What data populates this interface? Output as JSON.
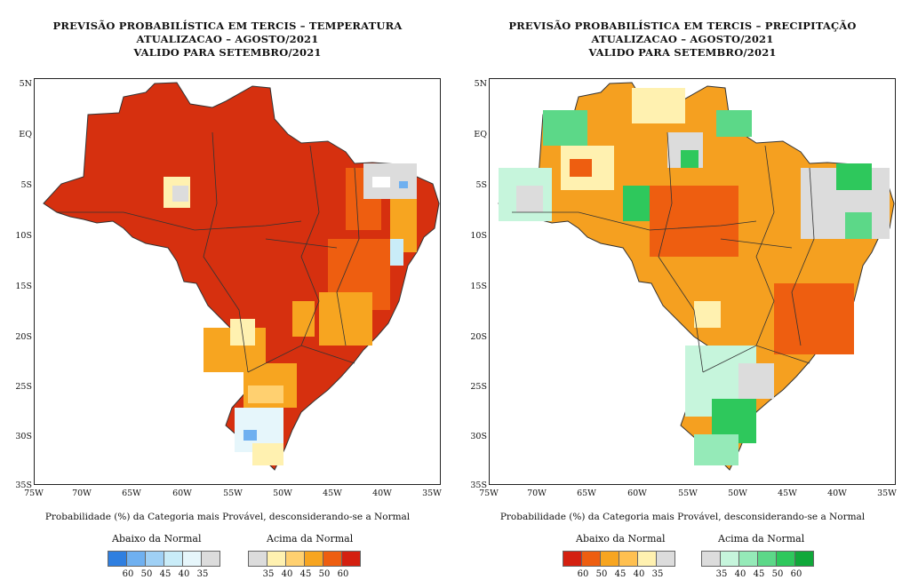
{
  "panels": [
    {
      "title_lines": [
        "PREVISÃO PROBABILÍSTICA EM TERCIS – TEMPERATURA",
        "ATUALIZACAO – AGOSTO/2021",
        "VALIDO PARA SETEMBRO/2021"
      ],
      "lat_labels": [
        "5N",
        "EQ",
        "5S",
        "10S",
        "15S",
        "20S",
        "25S",
        "30S",
        "35S"
      ],
      "lon_labels": [
        "75W",
        "70W",
        "65W",
        "60W",
        "55W",
        "50W",
        "45W",
        "40W",
        "35W"
      ],
      "caption": "Probabilidade (%) da Categoria mais Provável, desconsiderando-se a Normal",
      "legend_below": {
        "title": "Abaixo da Normal",
        "ticks": [
          "60",
          "50",
          "45",
          "40",
          "35"
        ],
        "colors": [
          "#2f7fe0",
          "#6fb0f0",
          "#9fd0f5",
          "#c9ecf8",
          "#e6f6fb",
          "#dcdcdc"
        ]
      },
      "legend_above": {
        "title": "Acima da Normal",
        "ticks": [
          "35",
          "40",
          "45",
          "50",
          "60"
        ],
        "colors": [
          "#dcdcdc",
          "#fff1b0",
          "#ffd070",
          "#f7a520",
          "#ee5e10",
          "#d42010"
        ]
      },
      "dominant_color": "#d6300f"
    },
    {
      "title_lines": [
        "PREVISÃO PROBABILÍSTICA EM TERCIS – PRECIPITAÇÃO",
        "ATUALIZACAO – AGOSTO/2021",
        "VALIDO PARA SETEMBRO/2021"
      ],
      "lat_labels": [
        "5N",
        "EQ",
        "5S",
        "10S",
        "15S",
        "20S",
        "25S",
        "30S",
        "35S"
      ],
      "lon_labels": [
        "75W",
        "70W",
        "65W",
        "60W",
        "55W",
        "50W",
        "45W",
        "40W",
        "35W"
      ],
      "caption": "Probabilidade (%) da Categoria mais Provável, desconsiderando-se a Normal",
      "legend_below": {
        "title": "Abaixo da Normal",
        "ticks": [
          "60",
          "50",
          "45",
          "40",
          "35"
        ],
        "colors": [
          "#d42010",
          "#ee5e10",
          "#f7a520",
          "#ffc050",
          "#fff1b0",
          "#dcdcdc"
        ]
      },
      "legend_above": {
        "title": "Acima da Normal",
        "ticks": [
          "35",
          "40",
          "45",
          "50",
          "60"
        ],
        "colors": [
          "#dcdcdc",
          "#c6f5dc",
          "#95eab8",
          "#5cd888",
          "#2ec85c",
          "#10a83a"
        ]
      },
      "dominant_color": "#f5a020"
    }
  ]
}
